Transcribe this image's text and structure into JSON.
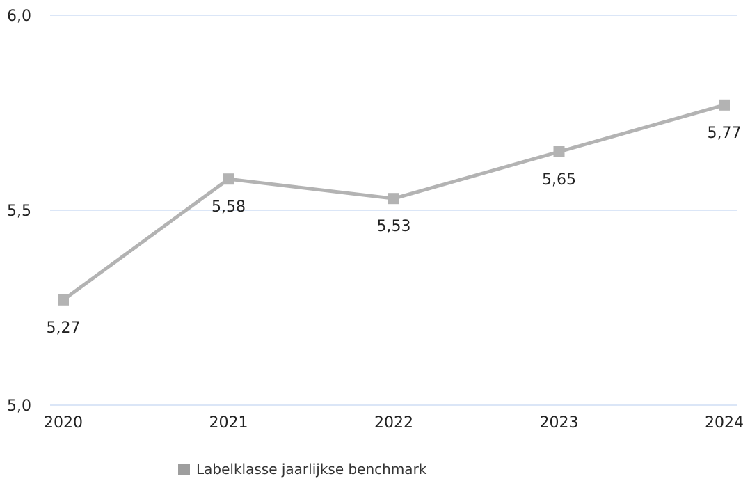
{
  "chart_data": {
    "type": "line",
    "title": "",
    "xlabel": "",
    "ylabel": "",
    "categories": [
      "2020",
      "2021",
      "2022",
      "2023",
      "2024"
    ],
    "series": [
      {
        "name": "Labelklasse jaarlijkse benchmark",
        "values": [
          5.27,
          5.58,
          5.53,
          5.65,
          5.77
        ],
        "data_labels": [
          "5,27",
          "5,58",
          "5,53",
          "5,65",
          "5,77"
        ],
        "color": "#b3b3b3",
        "marker": "square"
      }
    ],
    "ylim": [
      5.0,
      6.0
    ],
    "y_ticks": [
      {
        "value": 6.0,
        "label": "6,0"
      },
      {
        "value": 5.5,
        "label": "5,5"
      },
      {
        "value": 5.0,
        "label": "5,0"
      }
    ],
    "grid": true,
    "grid_color": "#dbe6f7",
    "legend_position": "bottom-center",
    "legend_swatch_color": "#9e9e9e"
  }
}
